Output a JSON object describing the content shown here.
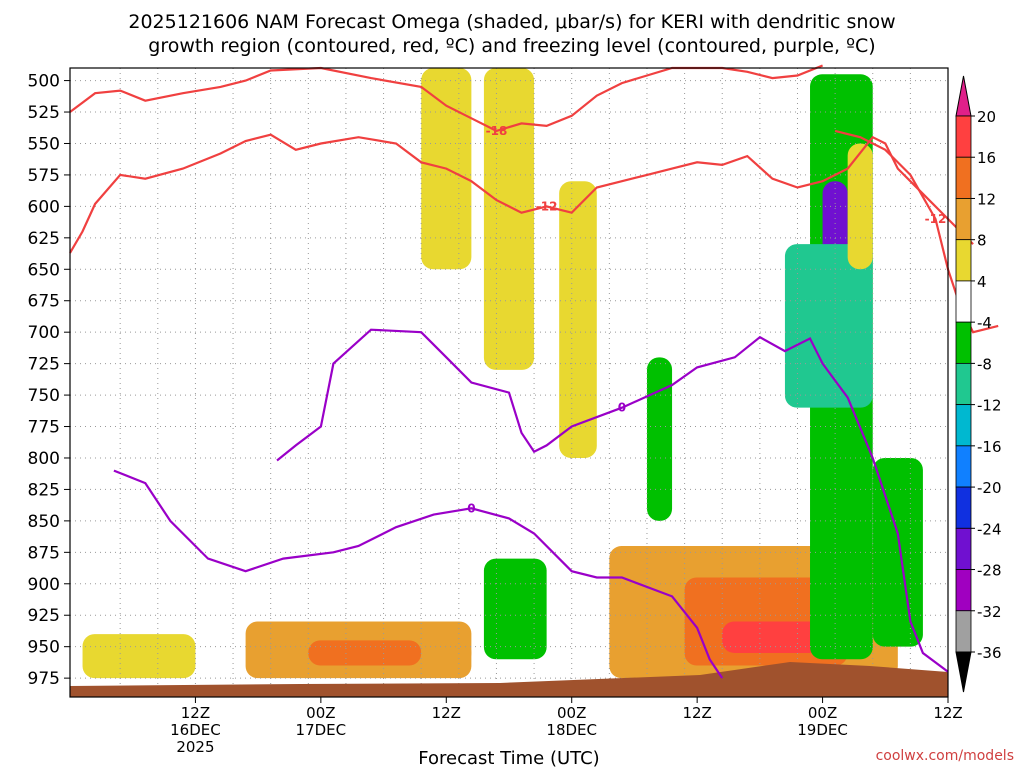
{
  "chart_data": {
    "type": "heatmap",
    "title_line1": "2025121606 NAM Forecast Omega (shaded, μbar/s) for KERI with dendritic snow",
    "title_line2": "growth region (contoured, red, ºC) and freezing level (contoured, purple, ºC)",
    "xlabel": "Forecast Time (UTC)",
    "ylabel": "",
    "watermark": "coolwx.com/models",
    "x_range_hours": [
      -4,
      66
    ],
    "y_range_hpa": [
      490,
      990
    ],
    "y_ticks": [
      "500",
      "525",
      "550",
      "575",
      "600",
      "625",
      "650",
      "675",
      "700",
      "725",
      "750",
      "775",
      "800",
      "825",
      "850",
      "875",
      "900",
      "925",
      "950",
      "975"
    ],
    "x_ticks": [
      {
        "hour": 6,
        "line1": "12Z",
        "line2": "16DEC",
        "line3": "2025"
      },
      {
        "hour": 16,
        "line1": "00Z",
        "line2": "17DEC",
        "line3": ""
      },
      {
        "hour": 26,
        "line1": "12Z",
        "line2": "",
        "line3": ""
      },
      {
        "hour": 36,
        "line1": "00Z",
        "line2": "18DEC",
        "line3": ""
      },
      {
        "hour": 46,
        "line1": "12Z",
        "line2": "",
        "line3": ""
      },
      {
        "hour": 56,
        "line1": "00Z",
        "line2": "19DEC",
        "line3": ""
      },
      {
        "hour": 66,
        "line1": "12Z",
        "line2": "",
        "line3": ""
      }
    ],
    "colorbar": {
      "labels": [
        "20",
        "16",
        "12",
        "8",
        "4",
        "-4",
        "-8",
        "-12",
        "-16",
        "-20",
        "-24",
        "-28",
        "-32",
        "-36"
      ],
      "colors": [
        "#e8002f",
        "#ff4040",
        "#f07020",
        "#e8a030",
        "#e8d830",
        "#ffffff",
        "#00c000",
        "#20c890",
        "#00b8d0",
        "#1080ff",
        "#1030e0",
        "#7010d0",
        "#a000c0",
        "#a0a0a0",
        "#000000"
      ]
    },
    "series": [
      {
        "name": "Freezing level 0 ºC",
        "color": "#9a00c8",
        "label": "0",
        "points": [
          [
            12.5,
            802
          ],
          [
            14,
            790
          ],
          [
            16,
            775
          ],
          [
            17,
            725
          ],
          [
            20,
            698
          ],
          [
            24,
            700
          ],
          [
            26,
            720
          ],
          [
            28,
            740
          ],
          [
            31,
            748
          ],
          [
            32,
            780
          ],
          [
            33,
            795
          ],
          [
            34,
            790
          ],
          [
            36,
            775
          ],
          [
            40,
            760
          ],
          [
            44,
            742
          ],
          [
            46,
            728
          ],
          [
            49,
            720
          ],
          [
            51,
            704
          ],
          [
            53,
            715
          ],
          [
            55,
            705
          ],
          [
            56,
            725
          ],
          [
            58,
            752
          ],
          [
            60,
            800
          ],
          [
            62,
            860
          ],
          [
            63,
            930
          ],
          [
            64,
            955
          ],
          [
            66,
            970
          ]
        ]
      },
      {
        "name": "Freezing level 0 ºC (lower)",
        "color": "#9a00c8",
        "label": "0",
        "points": [
          [
            -0.5,
            810
          ],
          [
            2,
            820
          ],
          [
            4,
            850
          ],
          [
            7,
            880
          ],
          [
            10,
            890
          ],
          [
            13,
            880
          ],
          [
            17,
            875
          ],
          [
            19,
            870
          ],
          [
            22,
            855
          ],
          [
            25,
            845
          ],
          [
            28,
            840
          ],
          [
            31,
            848
          ],
          [
            33,
            860
          ],
          [
            36,
            890
          ],
          [
            38,
            895
          ],
          [
            40,
            895
          ],
          [
            44,
            910
          ],
          [
            46,
            935
          ],
          [
            47,
            960
          ],
          [
            48,
            975
          ]
        ]
      },
      {
        "name": "Isotherm -12 ºC",
        "color": "#f04040",
        "label": "-12",
        "points": [
          [
            -4,
            637
          ],
          [
            -3,
            620
          ],
          [
            -2,
            598
          ],
          [
            0,
            575
          ],
          [
            2,
            578
          ],
          [
            5,
            570
          ],
          [
            8,
            558
          ],
          [
            10,
            548
          ],
          [
            12,
            543
          ],
          [
            14,
            555
          ],
          [
            16,
            550
          ],
          [
            19,
            545
          ],
          [
            22,
            550
          ],
          [
            24,
            565
          ],
          [
            26,
            570
          ],
          [
            28,
            580
          ],
          [
            30,
            595
          ],
          [
            32,
            605
          ],
          [
            34,
            600
          ],
          [
            36,
            605
          ],
          [
            38,
            585
          ],
          [
            40,
            580
          ],
          [
            42,
            575
          ],
          [
            44,
            570
          ],
          [
            46,
            565
          ],
          [
            48,
            567
          ],
          [
            50,
            560
          ],
          [
            52,
            578
          ],
          [
            54,
            585
          ],
          [
            56,
            580
          ],
          [
            58,
            570
          ],
          [
            60,
            545
          ],
          [
            61,
            550
          ],
          [
            62,
            570
          ],
          [
            64,
            590
          ],
          [
            66,
            610
          ],
          [
            68,
            630
          ]
        ]
      },
      {
        "name": "Isotherm -18 ºC",
        "color": "#f04040",
        "label": "-18",
        "points": [
          [
            -4,
            525
          ],
          [
            -2,
            510
          ],
          [
            0,
            508
          ],
          [
            2,
            516
          ],
          [
            5,
            510
          ],
          [
            8,
            505
          ],
          [
            10,
            500
          ],
          [
            12,
            492
          ],
          [
            16,
            490
          ],
          [
            20,
            498
          ],
          [
            24,
            505
          ],
          [
            26,
            520
          ],
          [
            28,
            530
          ],
          [
            30,
            540
          ],
          [
            32,
            534
          ],
          [
            34,
            536
          ],
          [
            36,
            528
          ],
          [
            38,
            512
          ],
          [
            40,
            502
          ],
          [
            42,
            496
          ],
          [
            44,
            490
          ],
          [
            48,
            490
          ],
          [
            50,
            493
          ],
          [
            52,
            498
          ],
          [
            54,
            496
          ],
          [
            56,
            488
          ]
        ]
      },
      {
        "name": "Isotherm -12 ºC (right)",
        "color": "#f04040",
        "label": "-12",
        "points": [
          [
            57,
            540
          ],
          [
            59,
            545
          ],
          [
            61,
            555
          ],
          [
            63,
            575
          ],
          [
            65,
            610
          ],
          [
            66,
            650
          ],
          [
            67,
            680
          ],
          [
            68,
            700
          ],
          [
            70,
            695
          ]
        ]
      }
    ],
    "omega_cells": [
      {
        "name": "sinking-cell-east-1",
        "hour_range": [
          -3,
          6
        ],
        "hpa_range": [
          940,
          975
        ],
        "value": 6
      },
      {
        "name": "sinking-cell-east-2",
        "hour_range": [
          10,
          28
        ],
        "hpa_range": [
          930,
          975
        ],
        "value": 8
      },
      {
        "name": "sinking-cell-core-1",
        "hour_range": [
          15,
          24
        ],
        "hpa_range": [
          945,
          965
        ],
        "value": 12
      },
      {
        "name": "sinking-cell-core-2",
        "hour_range": [
          24,
          28
        ],
        "hpa_range": [
          945,
          965
        ],
        "value": 14
      },
      {
        "name": "sinking-cell-west",
        "hour_range": [
          39,
          62
        ],
        "hpa_range": [
          870,
          975
        ],
        "value": 8
      },
      {
        "name": "sinking-cell-west-core",
        "hour_range": [
          45,
          58
        ],
        "hpa_range": [
          895,
          965
        ],
        "value": 12
      },
      {
        "name": "sinking-cell-west-max",
        "hour_range": [
          48,
          57
        ],
        "hpa_range": [
          930,
          955
        ],
        "value": 16
      },
      {
        "name": "rising-column-main",
        "hour_range": [
          55,
          60
        ],
        "hpa_range": [
          495,
          960
        ],
        "value": -8
      },
      {
        "name": "rising-column-core",
        "hour_range": [
          56,
          58
        ],
        "hpa_range": [
          580,
          750
        ],
        "value": -24
      },
      {
        "name": "rising-column-edge",
        "hour_range": [
          53,
          60
        ],
        "hpa_range": [
          630,
          760
        ],
        "value": -12
      },
      {
        "name": "rising-column-low",
        "hour_range": [
          60,
          64
        ],
        "hpa_range": [
          800,
          950
        ],
        "value": -8
      },
      {
        "name": "rising-cell-right",
        "hour_range": [
          66,
          67
        ],
        "hpa_range": [
          760,
          980
        ],
        "value": -8
      },
      {
        "name": "rising-cell-lowlevel",
        "hour_range": [
          29,
          34
        ],
        "hpa_range": [
          880,
          960
        ],
        "value": -8
      },
      {
        "name": "rising-cell-mid",
        "hour_range": [
          42,
          44
        ],
        "hpa_range": [
          720,
          850
        ],
        "value": -8
      },
      {
        "name": "sinking-column-upper-1",
        "hour_range": [
          24,
          28
        ],
        "hpa_range": [
          490,
          650
        ],
        "value": 6
      },
      {
        "name": "sinking-column-upper-2",
        "hour_range": [
          29,
          33
        ],
        "hpa_range": [
          490,
          730
        ],
        "value": 6
      },
      {
        "name": "sinking-column-upper-3",
        "hour_range": [
          35,
          38
        ],
        "hpa_range": [
          580,
          800
        ],
        "value": 6
      },
      {
        "name": "sinking-column-upper-4",
        "hour_range": [
          58,
          60
        ],
        "hpa_range": [
          550,
          650
        ],
        "value": 6
      }
    ]
  }
}
